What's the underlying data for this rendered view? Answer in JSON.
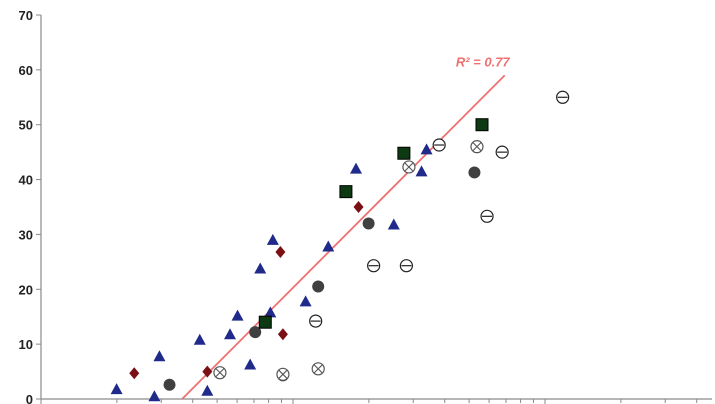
{
  "chart_data": {
    "type": "scatter",
    "title": "",
    "xlabel": "",
    "ylabel": "",
    "x_scale": "log",
    "x_range_decades": [
      0,
      2
    ],
    "ylim": [
      0,
      70
    ],
    "y_ticks": [
      "0",
      "10",
      "20",
      "30",
      "40",
      "50",
      "60",
      "70"
    ],
    "grid": false,
    "legend": "none",
    "trendline": {
      "color": "#f07070",
      "label": "R² = 0.77",
      "from": {
        "x_decade": 0.56,
        "y": 0
      },
      "to": {
        "x_decade": 1.84,
        "y": 59
      }
    },
    "series": [
      {
        "marker": "triangle",
        "color": "#1f2a8a",
        "points": [
          {
            "x_decade": 0.3,
            "y": 1.8
          },
          {
            "x_decade": 0.45,
            "y": 0.5
          },
          {
            "x_decade": 0.47,
            "y": 7.8
          },
          {
            "x_decade": 0.63,
            "y": 10.8
          },
          {
            "x_decade": 0.66,
            "y": 1.5
          },
          {
            "x_decade": 0.75,
            "y": 11.8
          },
          {
            "x_decade": 0.78,
            "y": 15.2
          },
          {
            "x_decade": 0.83,
            "y": 6.3
          },
          {
            "x_decade": 0.87,
            "y": 23.8
          },
          {
            "x_decade": 0.91,
            "y": 15.8
          },
          {
            "x_decade": 0.92,
            "y": 29.0
          },
          {
            "x_decade": 1.05,
            "y": 17.8
          },
          {
            "x_decade": 1.14,
            "y": 27.8
          },
          {
            "x_decade": 1.25,
            "y": 42.0
          },
          {
            "x_decade": 1.4,
            "y": 31.8
          },
          {
            "x_decade": 1.51,
            "y": 41.5
          },
          {
            "x_decade": 1.53,
            "y": 45.5
          }
        ]
      },
      {
        "marker": "diamond",
        "color": "#7a0f14",
        "points": [
          {
            "x_decade": 0.37,
            "y": 4.7
          },
          {
            "x_decade": 0.66,
            "y": 5.0
          },
          {
            "x_decade": 0.95,
            "y": 26.8
          },
          {
            "x_decade": 0.96,
            "y": 11.8
          },
          {
            "x_decade": 1.26,
            "y": 35.0
          }
        ]
      },
      {
        "marker": "circle",
        "color": "#404040",
        "points": [
          {
            "x_decade": 0.51,
            "y": 2.6
          },
          {
            "x_decade": 0.85,
            "y": 12.2
          },
          {
            "x_decade": 0.96,
            "y": 4.3
          },
          {
            "x_decade": 1.1,
            "y": 20.5
          },
          {
            "x_decade": 1.3,
            "y": 32.0
          },
          {
            "x_decade": 1.45,
            "y": 24.3
          },
          {
            "x_decade": 1.72,
            "y": 41.3
          }
        ]
      },
      {
        "marker": "square",
        "color": "#0d3a12",
        "points": [
          {
            "x_decade": 0.89,
            "y": 14.0
          },
          {
            "x_decade": 1.21,
            "y": 37.8
          },
          {
            "x_decade": 1.44,
            "y": 44.8
          },
          {
            "x_decade": 1.75,
            "y": 50.0
          }
        ]
      },
      {
        "marker": "open-circle-bar",
        "color": "#222222",
        "points": [
          {
            "x_decade": 1.09,
            "y": 14.2
          },
          {
            "x_decade": 1.32,
            "y": 24.3
          },
          {
            "x_decade": 1.45,
            "y": 24.3
          },
          {
            "x_decade": 1.58,
            "y": 46.3
          },
          {
            "x_decade": 1.77,
            "y": 33.3
          },
          {
            "x_decade": 1.83,
            "y": 45.0
          },
          {
            "x_decade": 2.07,
            "y": 55.0
          }
        ]
      },
      {
        "marker": "open-circle-x",
        "color": "#555555",
        "points": [
          {
            "x_decade": 0.71,
            "y": 4.8
          },
          {
            "x_decade": 0.96,
            "y": 4.5
          },
          {
            "x_decade": 1.1,
            "y": 5.5
          },
          {
            "x_decade": 1.46,
            "y": 42.3
          },
          {
            "x_decade": 1.73,
            "y": 46.0
          }
        ]
      }
    ]
  }
}
